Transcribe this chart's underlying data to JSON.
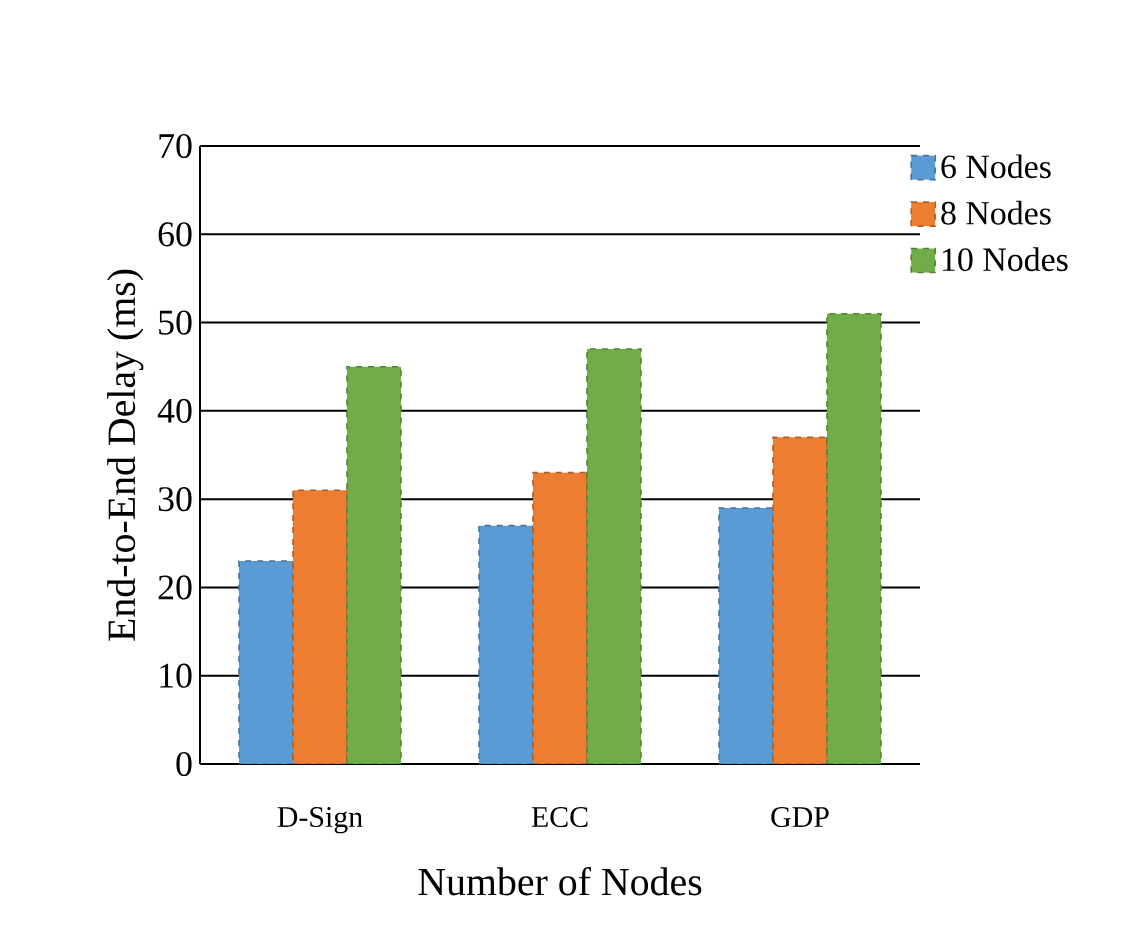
{
  "chart_data": {
    "type": "bar",
    "xlabel": "Number of Nodes",
    "ylabel": "End-to-End Delay (ms)",
    "categories": [
      "D-Sign",
      "ECC",
      "GDP"
    ],
    "series": [
      {
        "name": "6 Nodes",
        "color": "#5b9bd5",
        "values": [
          23,
          27,
          29
        ]
      },
      {
        "name": "8 Nodes",
        "color": "#ed7d31",
        "values": [
          31,
          33,
          37
        ]
      },
      {
        "name": "10 Nodes",
        "color": "#70ad47",
        "values": [
          45,
          47,
          51
        ]
      }
    ],
    "ylim": [
      0,
      70
    ],
    "yticks": [
      0,
      10,
      20,
      30,
      40,
      50,
      60,
      70
    ],
    "grid": "y",
    "legend": "top right"
  }
}
